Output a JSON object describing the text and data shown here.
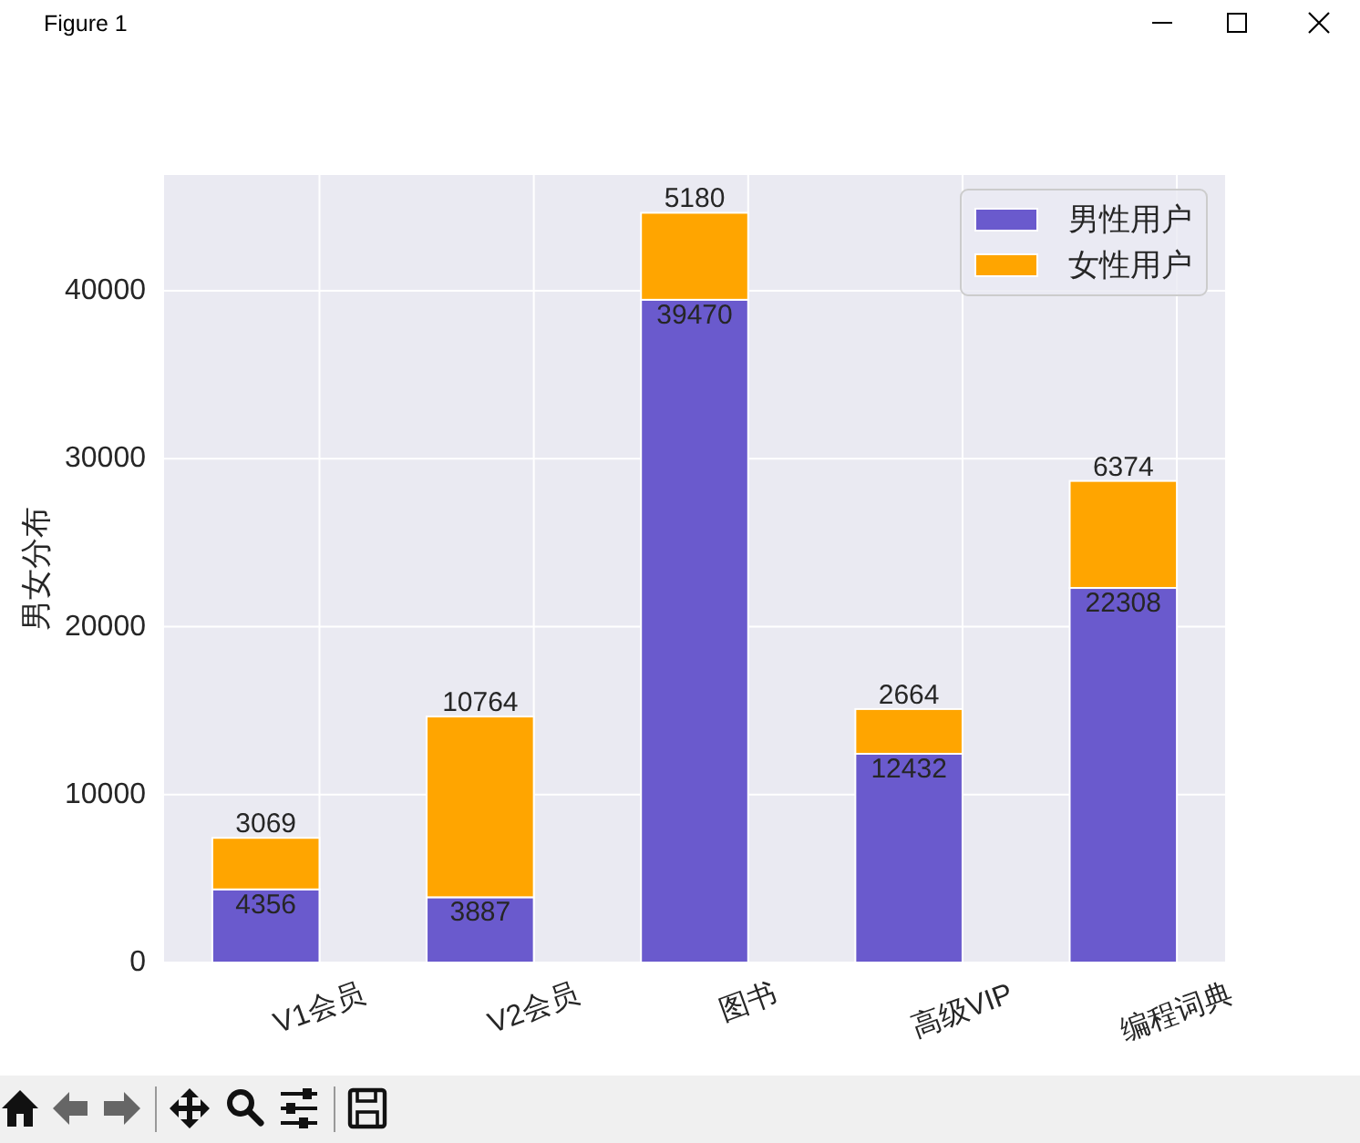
{
  "chart_data": {
    "type": "bar",
    "stacked": true,
    "categories": [
      "V1会员",
      "V2会员",
      "图书",
      "高级VIP",
      "编程词典"
    ],
    "series": [
      {
        "name": "男性用户",
        "color": "#6a5acd",
        "values": [
          4356,
          3887,
          39470,
          12432,
          22308
        ]
      },
      {
        "name": "女性用户",
        "color": "#ffa500",
        "values": [
          3069,
          10764,
          5180,
          2664,
          6374
        ]
      }
    ],
    "ylabel": "男女分布",
    "ylim": [
      0,
      46900
    ],
    "yticks": [
      0,
      10000,
      20000,
      30000,
      40000
    ],
    "grid": true,
    "legend": "top right",
    "data_labels": true,
    "annotations": [
      "Figure 1"
    ]
  }
}
